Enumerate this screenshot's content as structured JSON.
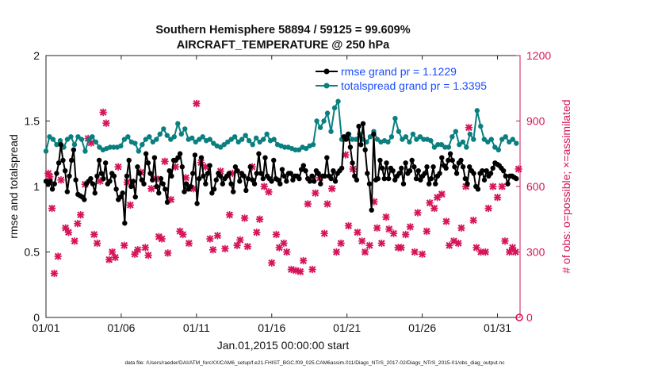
{
  "colors": {
    "rmse": "#000000",
    "spread": "#0a7f7f",
    "obs": "#d6145a",
    "legend_text": "#1a4dff",
    "axis": "#222222"
  },
  "chart_data": {
    "type": "line",
    "title": "Southern Hemisphere 58894 / 59125 = 99.609%",
    "subtitle": "AIRCRAFT_TEMPERATURE @ 250 hPa",
    "xlabel": "Jan.01,2015 00:00:00 start",
    "ylabel_left": "rmse and totalspread",
    "ylabel_right": "# of obs: o=possible; ×=assimilated",
    "footer": "data file: /Users/raeder/DAI/ATM_forcXX/CAM6_setup/f.e21.FHIST_BGC.f09_025.CAM6assim.011/Diags_NTrS_2017-02/Diags_NTrS_2015-01/obs_diag_output.nc",
    "xlim": [
      0,
      31.5
    ],
    "ylim_left": [
      0,
      2
    ],
    "ylim_right": [
      0,
      1200
    ],
    "xticks": [
      0,
      5,
      10,
      15,
      20,
      25,
      30
    ],
    "xtick_labels": [
      "01/01",
      "01/06",
      "01/11",
      "01/16",
      "01/21",
      "01/26",
      "01/31"
    ],
    "yticks_left": [
      0,
      0.5,
      1,
      1.5,
      2
    ],
    "ytick_labels_left": [
      "0",
      "0.5",
      "1",
      "1.5",
      "2"
    ],
    "yticks_right": [
      0,
      300,
      600,
      900,
      1200
    ],
    "ytick_labels_right": [
      "0",
      "300",
      "600",
      "900",
      "1200"
    ],
    "legend": [
      "rmse grand pr = 1.1229",
      "totalspread grand pr = 1.3395"
    ],
    "legend_position": "top-right",
    "series": [
      {
        "name": "rmse grand pr = 1.1229",
        "values": [
          1.04,
          1.02,
          1.04,
          0.98,
          1.02,
          1.1,
          1.18,
          1.32,
          1.2,
          1.12,
          0.96,
          1.08,
          1.2,
          1.28,
          1.05,
          0.94,
          0.93,
          0.92,
          0.9,
          1.02,
          1.04,
          1.06,
          1.02,
          0.95,
          1.08,
          1.2,
          1.1,
          1.06,
          1.18,
          1.02,
          1.04,
          1.1,
          1.08,
          0.98,
          0.9,
          0.92,
          0.95,
          0.72,
          1.08,
          1.2,
          1.0,
          1.04,
          0.92,
          1.15,
          1.1,
          1.05,
          1.02,
          1.25,
          1.18,
          1.1,
          1.05,
          1.22,
          1.0,
          0.95,
          1.06,
          1.02,
          0.98,
          0.88,
          1.12,
          1.08,
          1.2,
          1.2,
          1.22,
          1.25,
          1.15,
          0.96,
          1.02,
          0.98,
          1.0,
          1.1,
          1.24,
          0.87,
          1.06,
          1.22,
          1.08,
          1.02,
          1.1,
          1.16,
          0.95,
          0.98,
          1.05,
          1.1,
          1.08,
          1.02,
          1.06,
          1.08,
          1.1,
          1.02,
          0.96,
          1.15,
          1.12,
          1.04,
          1.1,
          1.08,
          0.97,
          1.06,
          1.15,
          1.05,
          1.02,
          1.1,
          1.25,
          1.1,
          1.06,
          1.22,
          1.08,
          1.06,
          1.04,
          1.2,
          1.06,
          1.05,
          1.02,
          1.13,
          1.08,
          1.04,
          1.1,
          1.1,
          1.05,
          1.08,
          1.08,
          1.06,
          1.13,
          1.16,
          1.12,
          1.06,
          1.04,
          1.08,
          1.04,
          1.12,
          1.1,
          1.02,
          1.08,
          1.08,
          1.22,
          1.08,
          1.06,
          1.12,
          1.04,
          1.1,
          1.12,
          1.14,
          1.38,
          1.36,
          1.4,
          1.3,
          1.18,
          1.08,
          1.05,
          1.46,
          1.32,
          1.48,
          1.28,
          1.1,
          1.02,
          0.82,
          1.4,
          1.05,
          1.06,
          1.2,
          1.14,
          1.06,
          1.18,
          1.06,
          1.14,
          1.12,
          1.05,
          1.08,
          1.1,
          1.14,
          1.02,
          1.18,
          1.1,
          1.12,
          1.2,
          1.15,
          1.06,
          1.12,
          1.05,
          1.08,
          1.1,
          1.15,
          1.02,
          1.06,
          1.15,
          1.02,
          1.08,
          1.1,
          1.22,
          1.16,
          1.14,
          1.2,
          1.25,
          1.2,
          1.15,
          1.1,
          1.18,
          1.2,
          1.15,
          1.06,
          1.02,
          1.15,
          1.12,
          1.1,
          1.0,
          0.98,
          1.1,
          1.12,
          1.05,
          1.12,
          1.08,
          1.1,
          1.14,
          1.18,
          1.17,
          1.16,
          1.14,
          1.12,
          1.08,
          1.02,
          1.08,
          1.08,
          1.07,
          1.06
        ],
        "note": "values are piecewise-interpolated over 121 time steps; see x array"
      },
      {
        "name": "totalspread grand pr = 1.3395",
        "values": [
          1.27,
          1.38,
          1.36,
          1.32,
          1.35,
          1.3,
          1.36,
          1.38,
          1.32,
          1.38,
          1.36,
          1.27,
          1.36,
          1.38,
          1.34,
          1.3,
          1.28,
          1.29,
          1.3,
          1.3,
          1.3,
          1.31,
          1.36,
          1.38,
          1.34,
          1.33,
          1.27,
          1.32,
          1.36,
          1.38,
          1.34,
          1.36,
          1.4,
          1.44,
          1.39,
          1.36,
          1.38,
          1.48,
          1.4,
          1.44,
          1.36,
          1.37,
          1.34,
          1.36,
          1.38,
          1.35,
          1.36,
          1.33,
          1.31,
          1.3,
          1.32,
          1.34,
          1.36,
          1.38,
          1.34,
          1.36,
          1.39,
          1.35,
          1.32,
          1.37,
          1.34,
          1.36,
          1.4,
          1.35,
          1.36,
          1.32,
          1.31,
          1.3,
          1.3,
          1.29,
          1.28,
          1.28,
          1.3,
          1.29,
          1.31,
          1.32,
          1.5,
          1.45,
          1.5,
          1.56,
          1.42,
          1.6,
          1.65,
          1.36,
          1.38,
          1.4,
          1.36,
          1.36,
          1.4,
          1.36,
          1.34,
          1.38,
          1.42,
          1.36,
          1.34,
          1.35,
          1.34,
          1.38,
          1.52,
          1.42,
          1.36,
          1.38,
          1.34,
          1.4,
          1.36,
          1.38,
          1.36,
          1.36,
          1.35,
          1.3,
          1.32,
          1.32,
          1.3,
          1.3,
          1.38,
          1.42,
          1.32,
          1.34,
          1.3,
          1.4,
          1.36,
          1.58,
          1.46,
          1.36,
          1.34,
          1.36,
          1.3,
          1.28,
          1.36,
          1.38,
          1.34,
          1.36,
          1.33
        ],
        "note": "values are piecewise-interpolated over time steps; see x array"
      }
    ],
    "obs_assimilated": {
      "name": "obs assimilated (x)",
      "x": [
        0.15,
        0.25,
        0.4,
        0.55,
        0.8,
        1.0,
        1.3,
        1.5,
        1.9,
        2.1,
        2.3,
        2.6,
        2.8,
        3.0,
        3.2,
        3.4,
        3.6,
        3.8,
        4.0,
        4.2,
        4.4,
        4.6,
        4.8,
        5.2,
        5.4,
        5.6,
        5.9,
        6.1,
        6.3,
        6.6,
        6.8,
        7.0,
        7.3,
        7.5,
        7.7,
        7.9,
        8.1,
        8.3,
        8.6,
        8.9,
        9.1,
        9.3,
        9.5,
        9.8,
        10.0,
        10.3,
        10.6,
        10.9,
        11.1,
        11.4,
        11.6,
        11.9,
        12.2,
        12.4,
        12.7,
        12.9,
        13.2,
        13.4,
        13.7,
        14.0,
        14.2,
        14.5,
        14.8,
        15.0,
        15.3,
        15.5,
        15.8,
        16.0,
        16.3,
        16.6,
        16.9,
        17.1,
        17.4,
        17.7,
        17.9,
        18.2,
        18.5,
        18.7,
        19.0,
        19.3,
        19.6,
        19.9,
        20.1,
        20.4,
        20.7,
        21.0,
        21.2,
        21.5,
        21.8,
        22.0,
        22.3,
        22.6,
        22.8,
        23.1,
        23.4,
        23.6,
        23.9,
        24.2,
        24.5,
        24.7,
        25.0,
        25.3,
        25.5,
        25.8,
        26.0,
        26.3,
        26.6,
        26.8,
        27.1,
        27.4,
        27.6,
        27.9,
        28.1,
        28.4,
        28.6,
        28.9,
        29.2,
        29.4,
        29.7,
        30.0,
        30.3,
        30.5,
        30.8,
        31.0,
        31.2,
        31.4
      ],
      "y": [
        660,
        645,
        500,
        202,
        280,
        630,
        410,
        390,
        350,
        430,
        470,
        610,
        820,
        800,
        380,
        340,
        625,
        940,
        890,
        265,
        300,
        275,
        690,
        330,
        620,
        515,
        290,
        310,
        665,
        320,
        285,
        590,
        635,
        370,
        360,
        715,
        295,
        540,
        690,
        395,
        380,
        640,
        340,
        590,
        980,
        710,
        690,
        360,
        310,
        375,
        670,
        315,
        470,
        660,
        330,
        355,
        455,
        325,
        690,
        390,
        450,
        600,
        575,
        250,
        380,
        320,
        340,
        300,
        220,
        215,
        210,
        260,
        520,
        220,
        570,
        640,
        385,
        520,
        590,
        300,
        340,
        745,
        420,
        680,
        390,
        350,
        300,
        330,
        530,
        410,
        340,
        460,
        405,
        385,
        320,
        320,
        380,
        415,
        300,
        480,
        290,
        395,
        525,
        500,
        550,
        565,
        440,
        330,
        350,
        340,
        410,
        600,
        870,
        445,
        320,
        300,
        300,
        500,
        600,
        550,
        600,
        350,
        300,
        320,
        300,
        680
      ]
    },
    "obs_possible_marker": {
      "name": "obs possible (o)",
      "x": [
        31.45
      ],
      "y": [
        0
      ]
    }
  }
}
